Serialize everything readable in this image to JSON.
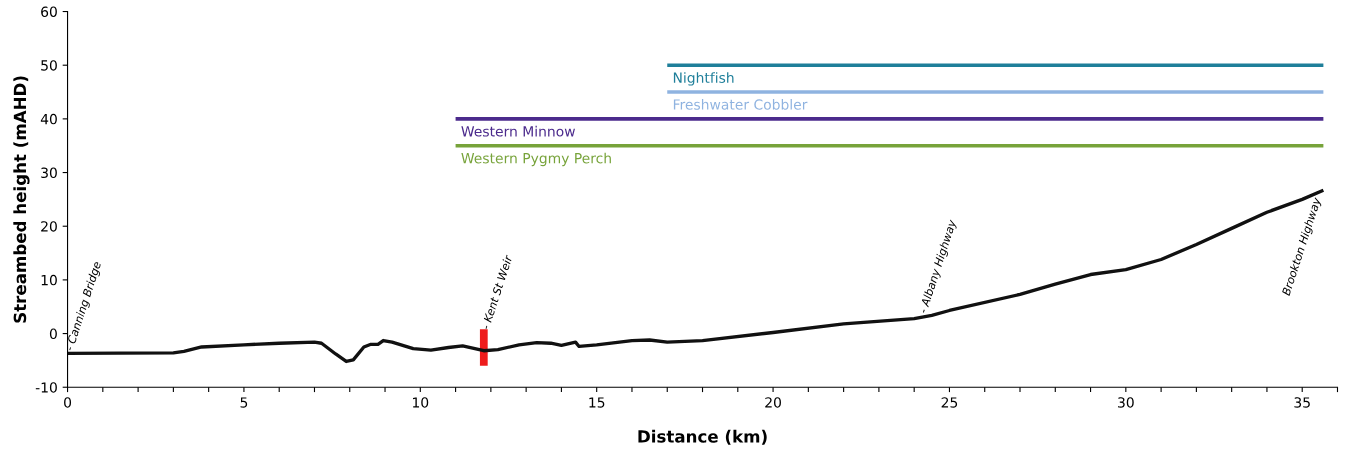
{
  "chart_data": {
    "type": "line",
    "xlabel": "Distance (km)",
    "ylabel": "Streambed height (mAHD)",
    "xlim": [
      0,
      36
    ],
    "ylim": [
      -10,
      60
    ],
    "xticks": [
      0,
      {
        "value": 1,
        "label": null
      },
      {
        "value": 2,
        "label": null
      },
      {
        "value": 3,
        "label": null
      },
      {
        "value": 4,
        "label": null
      },
      5,
      {
        "value": 6,
        "label": null
      },
      {
        "value": 7,
        "label": null
      },
      {
        "value": 8,
        "label": null
      },
      {
        "value": 9,
        "label": null
      },
      10,
      {
        "value": 11,
        "label": null
      },
      {
        "value": 12,
        "label": null
      },
      {
        "value": 13,
        "label": null
      },
      {
        "value": 14,
        "label": null
      },
      15,
      {
        "value": 16,
        "label": null
      },
      {
        "value": 17,
        "label": null
      },
      {
        "value": 18,
        "label": null
      },
      {
        "value": 19,
        "label": null
      },
      20,
      {
        "value": 21,
        "label": null
      },
      {
        "value": 22,
        "label": null
      },
      {
        "value": 23,
        "label": null
      },
      {
        "value": 24,
        "label": null
      },
      25,
      {
        "value": 26,
        "label": null
      },
      {
        "value": 27,
        "label": null
      },
      {
        "value": 28,
        "label": null
      },
      {
        "value": 29,
        "label": null
      },
      30,
      {
        "value": 31,
        "label": null
      },
      {
        "value": 32,
        "label": null
      },
      {
        "value": 33,
        "label": null
      },
      {
        "value": 34,
        "label": null
      },
      35,
      {
        "value": 36,
        "label": null
      }
    ],
    "yticks": [
      -10,
      0,
      10,
      20,
      30,
      40,
      50,
      60
    ],
    "grid": false,
    "marker": "none",
    "series": [
      {
        "color": "#111111",
        "x": [
          0,
          3.0,
          3.3,
          3.8,
          5,
          6,
          7,
          7.2,
          7.6,
          7.9,
          8.1,
          8.4,
          8.6,
          8.8,
          8.95,
          9.2,
          9.8,
          10.3,
          10.8,
          11.2,
          11.8,
          12.2,
          12.8,
          13.3,
          13.7,
          14.0,
          14.4,
          14.5,
          15,
          16,
          16.5,
          17,
          18,
          20,
          22,
          24,
          24.5,
          25,
          27,
          28,
          29,
          30,
          31,
          32,
          33,
          34,
          35,
          35.6
        ],
        "values": [
          -3.7,
          -3.6,
          -3.3,
          -2.5,
          -2.1,
          -1.8,
          -1.6,
          -1.8,
          -3.8,
          -5.2,
          -4.9,
          -2.5,
          -2.0,
          -2.0,
          -1.3,
          -1.6,
          -2.8,
          -3.1,
          -2.6,
          -2.3,
          -3.2,
          -3.0,
          -2.1,
          -1.7,
          -1.8,
          -2.2,
          -1.6,
          -2.4,
          -2.1,
          -1.3,
          -1.2,
          -1.6,
          -1.3,
          0.2,
          1.8,
          2.8,
          3.4,
          4.3,
          7.3,
          9.2,
          11.0,
          11.9,
          13.8,
          16.6,
          19.6,
          22.6,
          25.0,
          26.7
        ]
      },
      {
        "type": "bar",
        "color": "#ee1c1c",
        "x": [
          11.8
        ],
        "base": [
          -6.0
        ],
        "values": [
          6.8
        ]
      },
      {
        "name": "Nightfish",
        "color": "#1f7f9a",
        "x": [
          17.0,
          35.6
        ],
        "values": [
          50,
          50
        ]
      },
      {
        "name": "Freshwater Cobbler",
        "color": "#8fb3e0",
        "x": [
          17.0,
          35.6
        ],
        "values": [
          45,
          45
        ]
      },
      {
        "name": "Western Minnow",
        "color": "#4b2a8c",
        "x": [
          11.0,
          35.6
        ],
        "values": [
          40,
          40
        ]
      },
      {
        "name": "Western Pygmy Perch",
        "color": "#77a33a",
        "x": [
          11.0,
          35.6
        ],
        "values": [
          35,
          35
        ]
      }
    ],
    "annotations": [
      {
        "text": "- Canning Bridge",
        "x": 0.2,
        "y": -3.5
      },
      {
        "text": "- Kent St Weir",
        "x": 12.0,
        "y": 0.5
      },
      {
        "text": "- Albany Highway",
        "x": 24.4,
        "y": 3.5
      },
      {
        "text": "Brookton Highway",
        "x": 35.3,
        "y": 25.5
      }
    ]
  }
}
